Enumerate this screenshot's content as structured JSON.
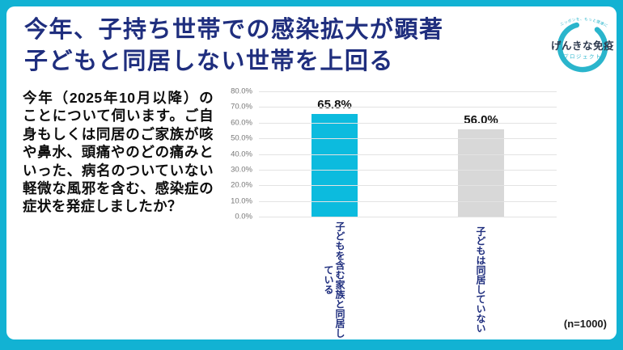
{
  "frame": {
    "accent_color": "#12b2d3"
  },
  "header": {
    "title_line1": "今年、子持ち世帯での感染拡大が顕著",
    "title_line2": "子どもと同居しない世帯を上回る",
    "title_color": "#1f2e7e"
  },
  "logo": {
    "tagline": "ニッポンを、もっと健康に。",
    "name": "げんきな免疫",
    "subname": "プロジェクト",
    "color": "#2ab5cc"
  },
  "question": {
    "text": "今年（2025年10月以降）のことについて伺います。ご自身もしくは同居のご家族が咳や鼻水、頭痛やのどの痛みといった、病名のついていない軽微な風邪を含む、感染症の症状を発症しましたか？"
  },
  "footnote": "(n=1000)",
  "chart_data": {
    "type": "bar",
    "categories": [
      "子どもを含む家族と同居している",
      "子どもは同居していない"
    ],
    "values": [
      65.8,
      56.0
    ],
    "value_labels": [
      "65.8%",
      "56.0%"
    ],
    "bar_colors": [
      "#0cbbde",
      "#d8d8d8"
    ],
    "title": "",
    "xlabel": "",
    "ylabel": "",
    "ylim": [
      0,
      80
    ],
    "yticks": [
      "0.0%",
      "10.0%",
      "20.0%",
      "30.0%",
      "40.0%",
      "50.0%",
      "60.0%",
      "70.0%",
      "80.0%"
    ],
    "grid": true,
    "legend": false
  }
}
